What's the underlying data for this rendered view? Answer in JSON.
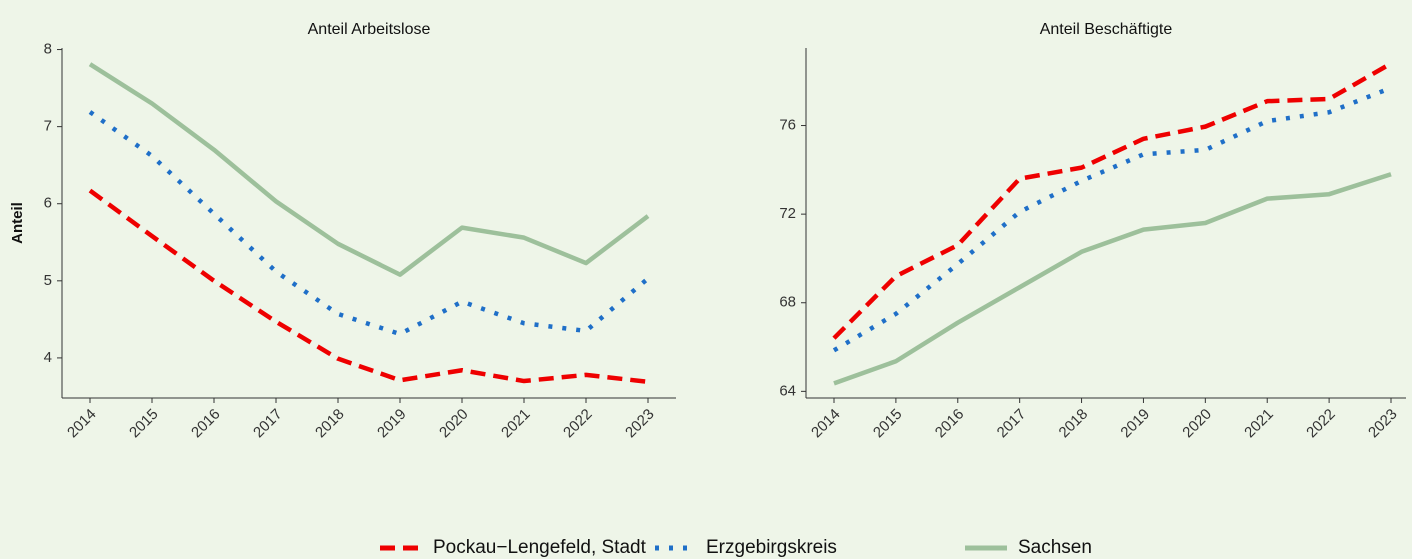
{
  "chart_data": [
    {
      "type": "line",
      "title": "Anteil Arbeitslose",
      "y_label": "Anteil",
      "categories": [
        "2014",
        "2015",
        "2016",
        "2017",
        "2018",
        "2019",
        "2020",
        "2021",
        "2022",
        "2023"
      ],
      "ylim": [
        3.48,
        8.02
      ],
      "yticks": [
        4,
        5,
        6,
        7,
        8
      ],
      "series": [
        {
          "name": "Pockau−Lengefeld, Stadt",
          "color": "#ee0000",
          "dash": "dashed",
          "values": [
            6.17,
            5.58,
            5.0,
            4.47,
            3.99,
            3.71,
            3.84,
            3.7,
            3.78,
            3.69
          ]
        },
        {
          "name": "Erzgebirgskreis",
          "color": "#1f6fc8",
          "dash": "dotted",
          "values": [
            7.19,
            6.62,
            5.87,
            5.12,
            4.57,
            4.31,
            4.73,
            4.45,
            4.35,
            5.03
          ]
        },
        {
          "name": "Sachsen",
          "color": "#9dc09b",
          "dash": "solid",
          "values": [
            7.81,
            7.3,
            6.7,
            6.03,
            5.48,
            5.08,
            5.69,
            5.56,
            5.23,
            5.84
          ]
        }
      ]
    },
    {
      "type": "line",
      "title": "Anteil Beschäftigte",
      "categories": [
        "2014",
        "2015",
        "2016",
        "2017",
        "2018",
        "2019",
        "2020",
        "2021",
        "2022",
        "2023"
      ],
      "ylim": [
        63.7,
        79.5
      ],
      "yticks": [
        64,
        68,
        72,
        76
      ],
      "series": [
        {
          "name": "Pockau−Lengefeld, Stadt",
          "color": "#ee0000",
          "dash": "dashed",
          "values": [
            66.4,
            69.2,
            70.6,
            73.6,
            74.1,
            75.4,
            75.95,
            77.1,
            77.2,
            78.8
          ]
        },
        {
          "name": "Erzgebirgskreis",
          "color": "#1f6fc8",
          "dash": "dotted",
          "values": [
            65.85,
            67.5,
            69.75,
            72.1,
            73.5,
            74.7,
            74.9,
            76.2,
            76.6,
            77.7
          ]
        },
        {
          "name": "Sachsen",
          "color": "#9dc09b",
          "dash": "solid",
          "values": [
            64.36,
            65.36,
            67.1,
            68.7,
            70.3,
            71.3,
            71.6,
            72.7,
            72.9,
            73.8
          ]
        }
      ]
    }
  ]
}
